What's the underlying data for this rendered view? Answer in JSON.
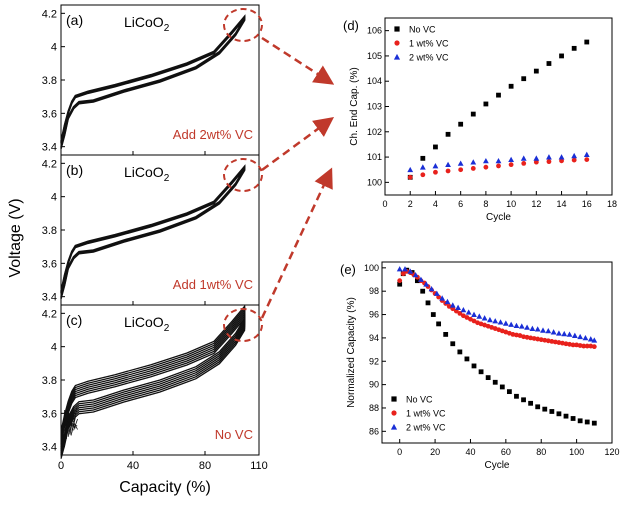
{
  "figure": {
    "left_panels": {
      "ylabel": "Voltage (V)",
      "xlabel": "Capacity (%)",
      "x_ticks": [
        "0",
        "40",
        "80",
        "110"
      ],
      "y_ticks": [
        "3.4",
        "3.6",
        "3.8",
        "4",
        "4.2"
      ],
      "panels": [
        {
          "label": "(a)",
          "material": "LiCoO",
          "subscript": "2",
          "note": "Add 2wt% VC"
        },
        {
          "label": "(b)",
          "material": "LiCoO",
          "subscript": "2",
          "note": "Add 1wt% VC"
        },
        {
          "label": "(c)",
          "material": "LiCoO",
          "subscript": "2",
          "note": "No VC"
        }
      ]
    },
    "annotation_color": "#c0392b"
  },
  "chart_data": [
    {
      "id": "d",
      "type": "scatter",
      "label": "(d)",
      "title": "",
      "xlabel": "Cycle",
      "ylabel": "Ch. End Cap. (%)",
      "xlim": [
        0,
        18
      ],
      "ylim": [
        99.5,
        106.5
      ],
      "x_ticks": [
        0,
        2,
        4,
        6,
        8,
        10,
        12,
        14,
        16,
        18
      ],
      "y_ticks": [
        100,
        101,
        102,
        103,
        104,
        105,
        106
      ],
      "legend_position": "top-left",
      "series": [
        {
          "name": "No VC",
          "marker": "square",
          "color": "#000000",
          "x": [
            2,
            3,
            4,
            5,
            6,
            7,
            8,
            9,
            10,
            11,
            12,
            13,
            14,
            15,
            16
          ],
          "y": [
            100.2,
            100.95,
            101.4,
            101.9,
            102.3,
            102.7,
            103.1,
            103.45,
            103.8,
            104.1,
            104.4,
            104.7,
            105.0,
            105.3,
            105.55
          ]
        },
        {
          "name": "1 wt% VC",
          "marker": "circle",
          "color": "#e8211c",
          "x": [
            2,
            3,
            4,
            5,
            6,
            7,
            8,
            9,
            10,
            11,
            12,
            13,
            14,
            15,
            16
          ],
          "y": [
            100.2,
            100.3,
            100.4,
            100.45,
            100.5,
            100.55,
            100.6,
            100.65,
            100.7,
            100.75,
            100.8,
            100.82,
            100.85,
            100.88,
            100.9
          ]
        },
        {
          "name": "2 wt% VC",
          "marker": "triangle",
          "color": "#1a2fd6",
          "x": [
            2,
            3,
            4,
            5,
            6,
            7,
            8,
            9,
            10,
            11,
            12,
            13,
            14,
            15,
            16
          ],
          "y": [
            100.5,
            100.6,
            100.65,
            100.7,
            100.75,
            100.8,
            100.85,
            100.85,
            100.9,
            100.95,
            100.95,
            101.0,
            101.0,
            101.05,
            101.1
          ]
        }
      ]
    },
    {
      "id": "e",
      "type": "scatter",
      "label": "(e)",
      "title": "",
      "xlabel": "Cycle",
      "ylabel": "Normalized Capacity (%)",
      "xlim": [
        -10,
        120
      ],
      "ylim": [
        85,
        100.5
      ],
      "x_ticks": [
        0,
        20,
        40,
        60,
        80,
        100,
        120
      ],
      "y_ticks": [
        86,
        88,
        90,
        92,
        94,
        96,
        98,
        100
      ],
      "legend_position": "bottom-left",
      "series": [
        {
          "name": "No VC",
          "marker": "square",
          "color": "#000000",
          "x": [
            0,
            2,
            4,
            7,
            10,
            13,
            16,
            19,
            22,
            26,
            30,
            34,
            38,
            42,
            46,
            50,
            54,
            58,
            62,
            66,
            70,
            74,
            78,
            82,
            86,
            90,
            94,
            98,
            102,
            106,
            110
          ],
          "y": [
            98.6,
            99.5,
            99.8,
            99.6,
            98.9,
            98.0,
            97.0,
            96.0,
            95.2,
            94.3,
            93.5,
            92.8,
            92.2,
            91.6,
            91.1,
            90.6,
            90.2,
            89.8,
            89.4,
            89.0,
            88.7,
            88.4,
            88.1,
            87.9,
            87.7,
            87.5,
            87.3,
            87.1,
            86.9,
            86.8,
            86.7
          ]
        },
        {
          "name": "1 wt% VC",
          "marker": "circle",
          "color": "#e8211c",
          "x": [
            0,
            2,
            4,
            6,
            8,
            10,
            12,
            14,
            16,
            18,
            20,
            22,
            24,
            26,
            28,
            30,
            32,
            34,
            36,
            38,
            40,
            42,
            44,
            46,
            48,
            50,
            52,
            54,
            56,
            58,
            60,
            62,
            64,
            66,
            68,
            70,
            72,
            74,
            76,
            78,
            80,
            82,
            84,
            86,
            88,
            90,
            92,
            94,
            96,
            98,
            100,
            102,
            104,
            106,
            108,
            110
          ],
          "y": [
            98.9,
            99.5,
            99.7,
            99.6,
            99.4,
            99.2,
            98.9,
            98.7,
            98.4,
            98.1,
            97.8,
            97.5,
            97.2,
            96.95,
            96.7,
            96.5,
            96.3,
            96.1,
            95.9,
            95.75,
            95.6,
            95.45,
            95.3,
            95.2,
            95.1,
            95.0,
            94.9,
            94.8,
            94.7,
            94.6,
            94.5,
            94.4,
            94.3,
            94.25,
            94.2,
            94.1,
            94.05,
            94.0,
            93.95,
            93.9,
            93.85,
            93.8,
            93.75,
            93.7,
            93.65,
            93.6,
            93.55,
            93.5,
            93.45,
            93.4,
            93.4,
            93.35,
            93.3,
            93.3,
            93.3,
            93.25
          ]
        },
        {
          "name": "2 wt% VC",
          "marker": "triangle",
          "color": "#1a2fd6",
          "x": [
            0,
            3,
            6,
            9,
            12,
            15,
            18,
            21,
            24,
            27,
            30,
            33,
            36,
            39,
            42,
            45,
            48,
            51,
            54,
            57,
            60,
            63,
            66,
            69,
            72,
            75,
            78,
            81,
            84,
            87,
            90,
            93,
            96,
            99,
            102,
            105,
            108,
            110
          ],
          "y": [
            99.9,
            99.9,
            99.7,
            99.4,
            99.0,
            98.6,
            98.2,
            97.8,
            97.4,
            97.1,
            96.8,
            96.6,
            96.4,
            96.2,
            96.0,
            95.85,
            95.7,
            95.55,
            95.45,
            95.35,
            95.25,
            95.15,
            95.05,
            95.0,
            94.9,
            94.8,
            94.75,
            94.65,
            94.6,
            94.5,
            94.4,
            94.35,
            94.3,
            94.2,
            94.1,
            94.0,
            93.9,
            93.8
          ]
        }
      ]
    }
  ]
}
